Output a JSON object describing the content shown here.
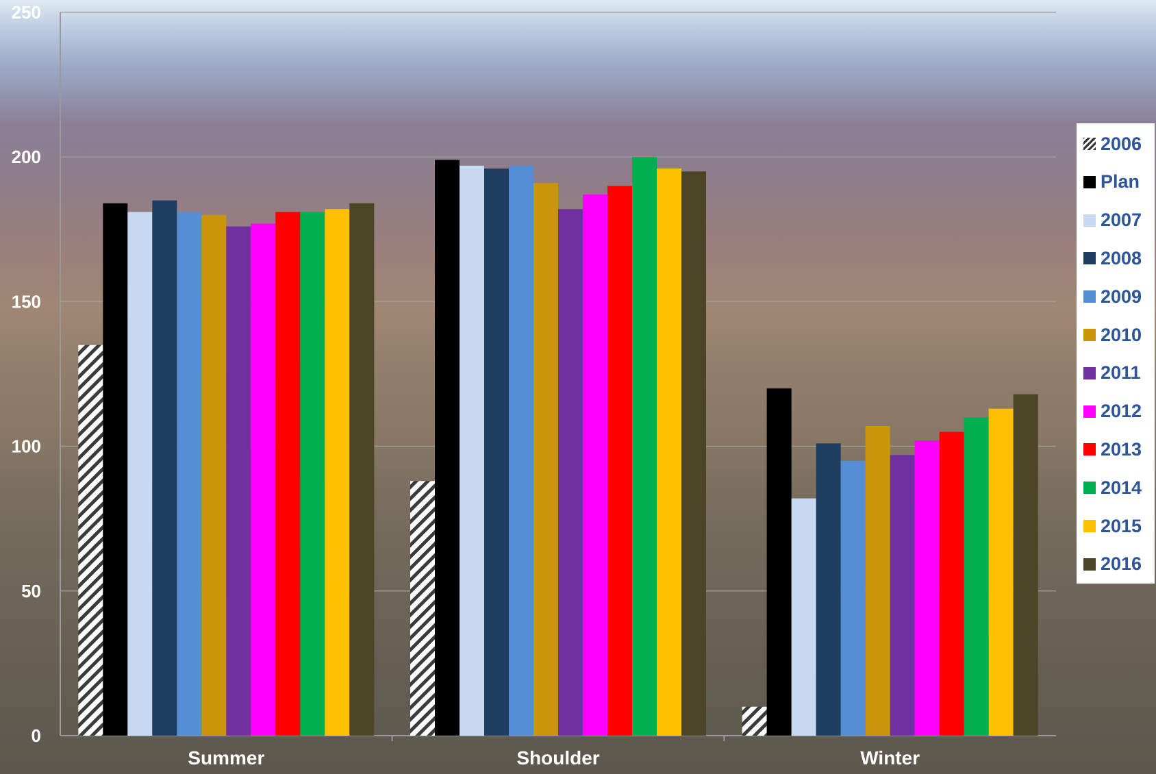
{
  "chart_data": {
    "type": "bar",
    "ylim": [
      0,
      250
    ],
    "yticks": [
      0,
      50,
      100,
      150,
      200,
      250
    ],
    "grid": true,
    "legend_position": "right",
    "categories": [
      "Summer",
      "Shoulder",
      "Winter"
    ],
    "series": [
      {
        "name": "2006",
        "color": "#ffffff",
        "pattern": "hatched",
        "values": [
          135,
          88,
          10
        ]
      },
      {
        "name": "Plan",
        "color": "#000000",
        "values": [
          184,
          199,
          120
        ]
      },
      {
        "name": "2007",
        "color": "#c6d9f1",
        "values": [
          181,
          197,
          82
        ]
      },
      {
        "name": "2008",
        "color": "#1f3e5f",
        "values": [
          185,
          196,
          101
        ]
      },
      {
        "name": "2009",
        "color": "#558ed5",
        "values": [
          181,
          197,
          95
        ]
      },
      {
        "name": "2010",
        "color": "#c9960b",
        "values": [
          180,
          191,
          107
        ]
      },
      {
        "name": "2011",
        "color": "#7030a0",
        "values": [
          176,
          182,
          97
        ]
      },
      {
        "name": "2012",
        "color": "#ff00ff",
        "values": [
          177,
          187,
          102
        ]
      },
      {
        "name": "2013",
        "color": "#ff0000",
        "values": [
          181,
          190,
          105
        ]
      },
      {
        "name": "2014",
        "color": "#00b050",
        "values": [
          181,
          200,
          110
        ]
      },
      {
        "name": "2015",
        "color": "#ffc000",
        "values": [
          182,
          196,
          113
        ]
      },
      {
        "name": "2016",
        "color": "#4b4427",
        "values": [
          184,
          195,
          118
        ]
      }
    ]
  }
}
